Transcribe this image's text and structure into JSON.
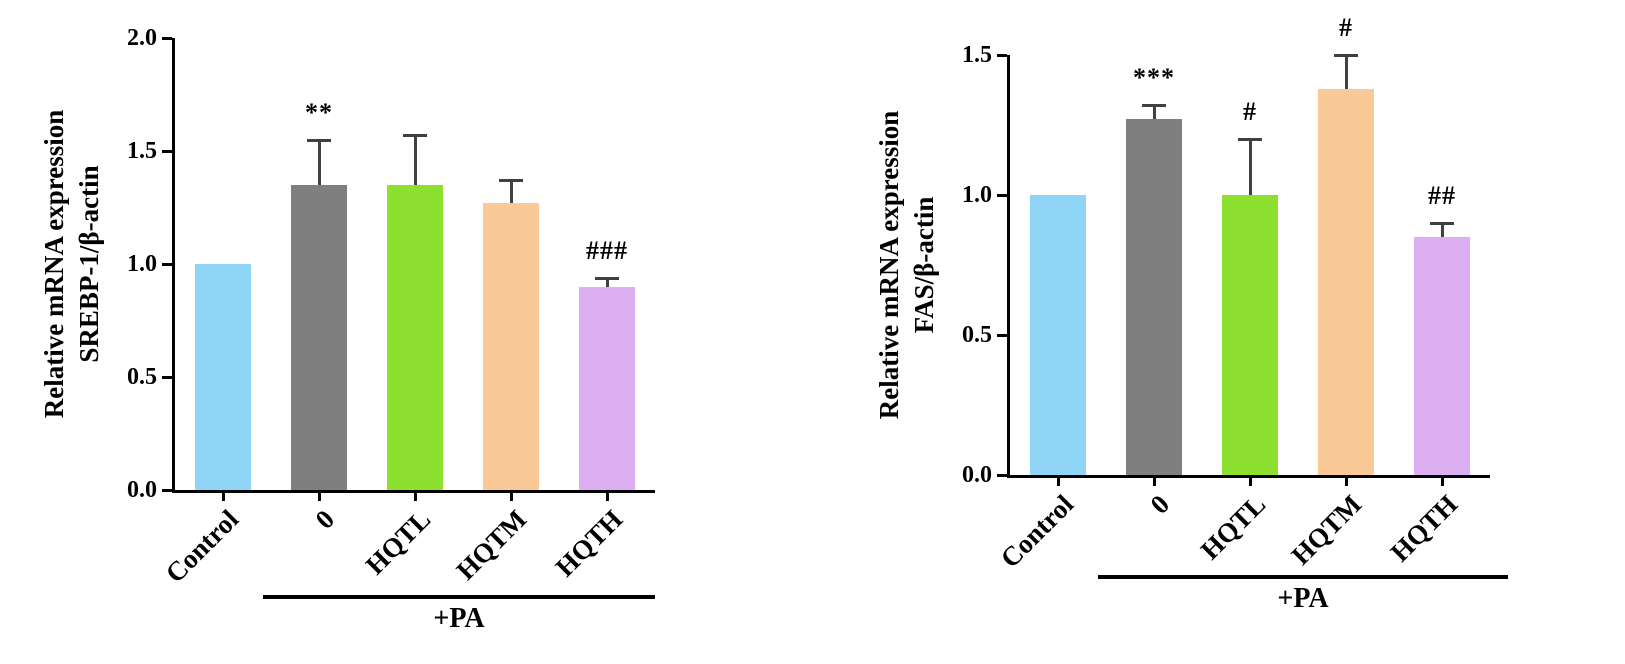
{
  "figure": {
    "background": "#ffffff"
  },
  "palette": {
    "bar_colors": [
      "#8ED5F6",
      "#7F7F7F",
      "#8DE030",
      "#F9C997",
      "#DCAFF2"
    ],
    "error_color": "#404040",
    "axis_color": "#000000"
  },
  "chart_data": [
    {
      "type": "bar",
      "title": "",
      "ylabel_lines": [
        "Relative mRNA expression",
        "SREBP-1/β-actin"
      ],
      "ylim": [
        0,
        2.0
      ],
      "yticks": [
        "0.0",
        "0.5",
        "1.0",
        "1.5",
        "2.0"
      ],
      "categories": [
        "Control",
        "0",
        "HQTL",
        "HQTM",
        "HQTH"
      ],
      "values": [
        1.0,
        1.35,
        1.35,
        1.27,
        0.9
      ],
      "errors": [
        0,
        0.2,
        0.22,
        0.1,
        0.04
      ],
      "annotations": [
        "",
        "**",
        "",
        "",
        "###"
      ],
      "group_label": "+PA",
      "group_span": [
        1,
        4
      ],
      "grid": false,
      "legend": "none"
    },
    {
      "type": "bar",
      "title": "",
      "ylabel_lines": [
        "Relative mRNA expression",
        "FAS/β-actin"
      ],
      "ylim": [
        0,
        1.5
      ],
      "yticks": [
        "0.0",
        "0.5",
        "1.0",
        "1.5"
      ],
      "categories": [
        "Control",
        "0",
        "HQTL",
        "HQTM",
        "HQTH"
      ],
      "values": [
        1.0,
        1.27,
        1.0,
        1.38,
        0.85
      ],
      "errors": [
        0,
        0.05,
        0.2,
        0.12,
        0.05
      ],
      "annotations": [
        "",
        "***",
        "#",
        "#",
        "##"
      ],
      "group_label": "+PA",
      "group_span": [
        1,
        4
      ],
      "grid": false,
      "legend": "none"
    }
  ]
}
